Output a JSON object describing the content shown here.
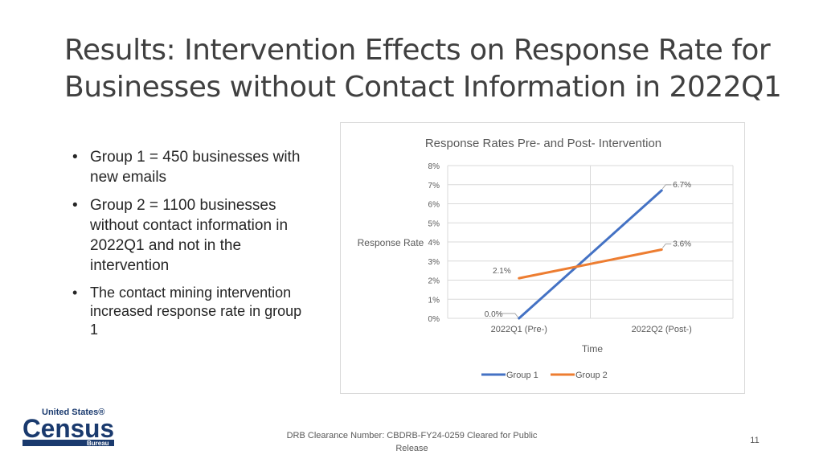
{
  "slide": {
    "title_line1": "Results: Intervention Effects on Response Rate for",
    "title_line2": "Businesses without Contact Information in 2022Q1",
    "bullets": [
      "Group 1 = 450 businesses with new emails",
      "Group 2 = 1100 businesses without contact information in 2022Q1 and not in the intervention",
      "The contact mining intervention increased response rate in group 1"
    ],
    "logo_text": {
      "line1": "United States®",
      "line2": "Census",
      "line3": "Bureau"
    },
    "footer_note": "DRB Clearance Number: CBDRB-FY24-0259 Cleared for Public Release",
    "page_number": "11"
  },
  "chart_data": {
    "type": "line",
    "title": "Response Rates Pre- and Post- Intervention",
    "xlabel": "Time",
    "ylabel": "Response Rate",
    "categories": [
      "2022Q1 (Pre-)",
      "2022Q2 (Post-)"
    ],
    "ylim": [
      0,
      8
    ],
    "yticks": [
      "0%",
      "1%",
      "2%",
      "3%",
      "4%",
      "5%",
      "6%",
      "7%",
      "8%"
    ],
    "grid": true,
    "legend": "bottom",
    "series": [
      {
        "name": "Group 1",
        "values": [
          0.0,
          6.7
        ],
        "labels": [
          "0.0%",
          "6.7%"
        ],
        "color": "#4472c4"
      },
      {
        "name": "Group 2",
        "values": [
          2.1,
          3.6
        ],
        "labels": [
          "2.1%",
          "3.6%"
        ],
        "color": "#ed7d31"
      }
    ]
  },
  "colors": {
    "census_blue": "#1a3a6e",
    "gridline": "#d9d9d9",
    "axis_text": "#595959"
  }
}
